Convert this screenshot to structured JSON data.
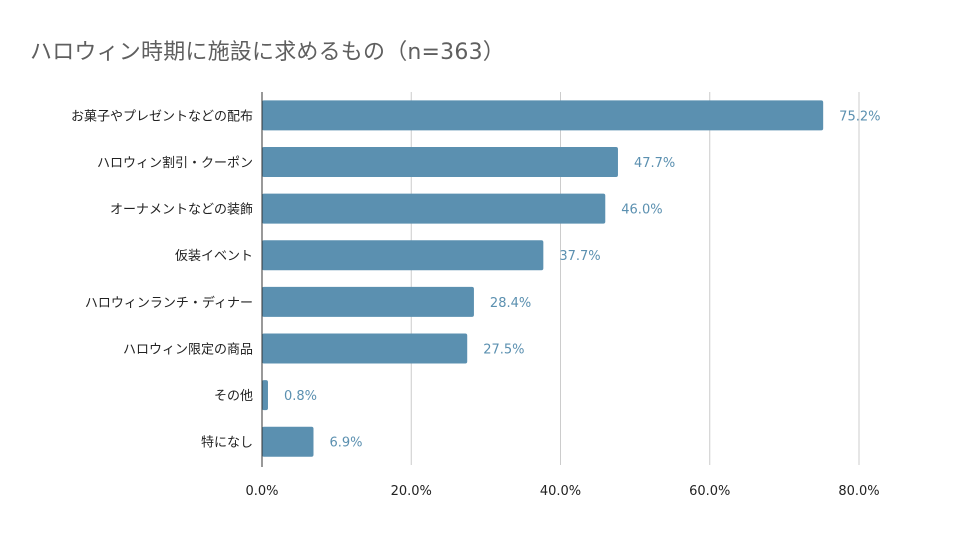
{
  "chart_data": {
    "type": "bar",
    "orientation": "horizontal",
    "title": "ハロウィン時期に施設に求めるもの（n=363）",
    "categories": [
      "お菓子やプレゼントなどの配布",
      "ハロウィン割引・クーポン",
      "オーナメントなどの装飾",
      "仮装イベント",
      "ハロウィンランチ・ディナー",
      "ハロウィン限定の商品",
      "その他",
      "特になし"
    ],
    "values": [
      75.2,
      47.7,
      46.0,
      37.7,
      28.4,
      27.5,
      0.8,
      6.9
    ],
    "value_labels": [
      "75.2%",
      "47.7%",
      "46.0%",
      "37.7%",
      "28.4%",
      "27.5%",
      "0.8%",
      "6.9%"
    ],
    "xlim": [
      0,
      80
    ],
    "x_ticks": [
      0,
      20,
      40,
      60,
      80
    ],
    "x_tick_labels": [
      "0.0%",
      "20.0%",
      "40.0%",
      "60.0%",
      "80.0%"
    ],
    "xlabel": "",
    "ylabel": "",
    "grid": true,
    "legend": "none",
    "colors": {
      "bar": "#5b90b0",
      "value_label": "#5b90b0",
      "grid": "#cccccc",
      "axis": "#333333",
      "title": "#5f5f5f"
    }
  }
}
